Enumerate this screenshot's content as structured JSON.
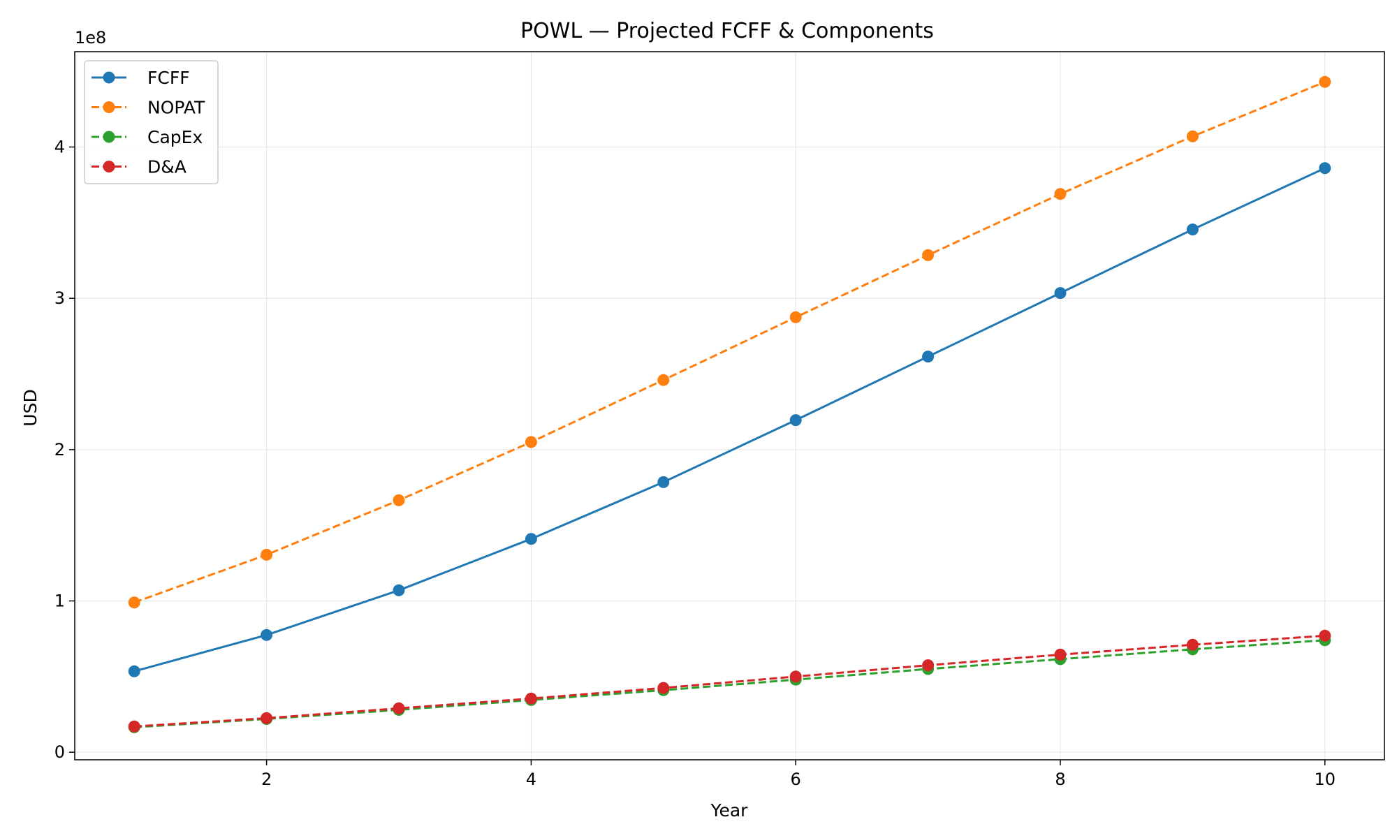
{
  "chart_data": {
    "type": "line",
    "title": "POWL — Projected FCFF & Components",
    "xlabel": "Year",
    "ylabel": "USD",
    "y_offset_text": "1e8",
    "x": [
      1,
      2,
      3,
      4,
      5,
      6,
      7,
      8,
      9,
      10
    ],
    "xlim": [
      0.55,
      10.45
    ],
    "ylim": [
      -5000000,
      463000000
    ],
    "x_ticks": [
      2,
      4,
      6,
      8,
      10
    ],
    "y_ticks": [
      0,
      100000000,
      200000000,
      300000000,
      400000000
    ],
    "y_tick_labels": [
      "0",
      "1",
      "2",
      "3",
      "4"
    ],
    "grid": true,
    "legend_position": "upper left",
    "series": [
      {
        "name": "FCFF",
        "color": "#1f77b4",
        "style": "solid",
        "values": [
          53500000,
          77500000,
          107000000,
          141000000,
          178500000,
          219500000,
          261500000,
          303500000,
          345500000,
          386000000
        ]
      },
      {
        "name": "NOPAT",
        "color": "#ff7f0e",
        "style": "dashed",
        "values": [
          99000000,
          130500000,
          166500000,
          205000000,
          246000000,
          287500000,
          328500000,
          369000000,
          407000000,
          443000000
        ]
      },
      {
        "name": "CapEx",
        "color": "#2ca02c",
        "style": "dashed",
        "values": [
          16500000,
          22000000,
          28000000,
          34500000,
          41000000,
          48000000,
          55000000,
          61500000,
          68000000,
          74000000
        ]
      },
      {
        "name": "D&A",
        "color": "#d62728",
        "style": "dashed",
        "values": [
          17000000,
          22500000,
          29000000,
          35500000,
          42500000,
          50000000,
          57500000,
          64500000,
          71000000,
          77000000
        ]
      }
    ]
  }
}
